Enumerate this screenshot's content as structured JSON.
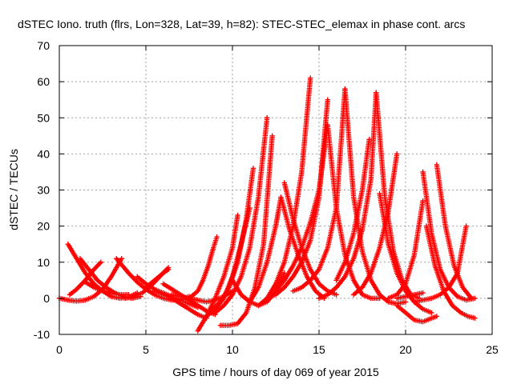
{
  "chart_data": {
    "type": "scatter",
    "title": "dSTEC Iono. truth (flrs, Lon=328, Lat=39, h=82): STEC-STEC_elemax in phase cont. arcs",
    "xlabel": "GPS time / hours of day 069 of year 2015",
    "ylabel": "dSTEC  / TECUs",
    "xlim": [
      0,
      25
    ],
    "ylim": [
      -10,
      70
    ],
    "xticks": [
      0,
      5,
      10,
      15,
      20,
      25
    ],
    "yticks": [
      -10,
      0,
      10,
      20,
      30,
      40,
      50,
      60,
      70
    ],
    "grid": true,
    "marker": "+",
    "color": "#ff0000",
    "series": [
      {
        "x": [
          0.0,
          0.5,
          1.0,
          1.5,
          2.0,
          2.5,
          3.0,
          3.3,
          3.6
        ],
        "y": [
          0,
          -0.5,
          -0.8,
          -0.5,
          0.5,
          2.5,
          6,
          8.5,
          11
        ]
      },
      {
        "x": [
          0.5,
          1.0,
          1.5,
          2.0,
          2.5,
          3.0,
          3.5,
          4.0,
          4.5
        ],
        "y": [
          15,
          11,
          7,
          4,
          2,
          0.5,
          0,
          0.3,
          1.5
        ]
      },
      {
        "x": [
          1.2,
          1.7,
          2.2,
          2.7,
          3.2,
          3.7,
          4.2,
          4.7
        ],
        "y": [
          11,
          8,
          5,
          3,
          1.5,
          0.5,
          0,
          0.5
        ]
      },
      {
        "x": [
          1.5,
          2.0,
          2.5,
          3.0,
          3.5,
          4.0
        ],
        "y": [
          4.5,
          3,
          2,
          1.5,
          1,
          1
        ]
      },
      {
        "x": [
          0.6,
          1.0,
          1.5,
          2.0,
          2.4
        ],
        "y": [
          1,
          2.5,
          5,
          8,
          10
        ]
      },
      {
        "x": [
          3.3,
          4.0,
          4.5,
          5.0,
          5.5,
          6.0,
          6.5,
          7.0,
          7.5
        ],
        "y": [
          11,
          7,
          4.5,
          2.5,
          1,
          0,
          -0.5,
          -0.3,
          0.5
        ]
      },
      {
        "x": [
          3.8,
          4.3,
          4.8,
          5.3,
          5.8,
          6.3
        ],
        "y": [
          0,
          0.5,
          1.5,
          3.5,
          6,
          8.5
        ]
      },
      {
        "x": [
          4.5,
          5.0,
          5.5,
          6.0,
          6.5,
          7.0,
          7.5,
          8.0
        ],
        "y": [
          6,
          4,
          2.5,
          1.5,
          0.5,
          -0.5,
          -1.5,
          -2.5
        ]
      },
      {
        "x": [
          5.0,
          5.5,
          6.0,
          6.3
        ],
        "y": [
          3,
          5,
          7,
          8
        ]
      },
      {
        "x": [
          5.5,
          6.0,
          6.5,
          7.0,
          7.5,
          8.0,
          8.5
        ],
        "y": [
          2,
          1,
          0,
          -1.5,
          -3,
          -4.5,
          -5.5
        ]
      },
      {
        "x": [
          6.0,
          6.5,
          7.0,
          7.5,
          8.0,
          8.5,
          9.0
        ],
        "y": [
          4,
          2.5,
          1,
          -0.5,
          -2,
          -3.5,
          -4.5
        ]
      },
      {
        "x": [
          6.5,
          7.0,
          7.5,
          8.0,
          8.5,
          9.0,
          9.5,
          10.0
        ],
        "y": [
          1,
          0.5,
          0,
          -0.5,
          -1,
          -0.5,
          0.5,
          2
        ]
      },
      {
        "x": [
          7.5,
          8.0,
          8.3,
          8.6,
          8.9,
          9.1
        ],
        "y": [
          0,
          2,
          5,
          9,
          14,
          17
        ]
      },
      {
        "x": [
          8.0,
          8.5,
          9.0,
          9.5,
          10.0,
          10.3
        ],
        "y": [
          -9,
          -5,
          0,
          6,
          14,
          23
        ]
      },
      {
        "x": [
          8.5,
          9.0,
          9.5,
          10.0,
          10.5,
          11.0
        ],
        "y": [
          -5,
          -3,
          0,
          6,
          15,
          25
        ]
      },
      {
        "x": [
          8.8,
          9.3,
          9.8,
          10.3,
          10.8,
          11.2
        ],
        "y": [
          -3,
          -1,
          3,
          10,
          22,
          36
        ]
      },
      {
        "x": [
          9.0,
          9.5,
          10.0,
          10.5,
          11.0,
          11.5,
          12.0
        ],
        "y": [
          -4,
          -2,
          1,
          6,
          14,
          28,
          50
        ]
      },
      {
        "x": [
          9.3,
          9.8,
          10.3,
          10.8,
          11.3,
          11.8,
          12.3
        ],
        "y": [
          -7.5,
          -7.5,
          -7,
          -4,
          3,
          15,
          45
        ]
      },
      {
        "x": [
          10.0,
          10.5,
          11.0,
          11.5,
          12.0,
          12.5,
          13.0
        ],
        "y": [
          5,
          1,
          -1,
          -2,
          -1,
          2,
          7
        ]
      },
      {
        "x": [
          11.0,
          11.5,
          12.0,
          12.5,
          12.8
        ],
        "y": [
          -1,
          3,
          10,
          20,
          28
        ]
      },
      {
        "x": [
          11.5,
          12.0,
          12.5,
          13.0,
          13.5,
          14.0,
          14.5
        ],
        "y": [
          -2,
          0,
          4,
          10,
          20,
          35,
          61
        ]
      },
      {
        "x": [
          12.0,
          12.5,
          13.0,
          13.5,
          14.0,
          14.5,
          15.0,
          15.5
        ],
        "y": [
          0,
          1,
          3,
          6,
          10,
          16,
          28,
          55
        ]
      },
      {
        "x": [
          12.5,
          13.0,
          13.5,
          14.0,
          14.5,
          15.0,
          15.5
        ],
        "y": [
          2,
          5,
          9,
          14,
          21,
          30,
          48
        ]
      },
      {
        "x": [
          13.0,
          13.5,
          14.0,
          14.5,
          15.0,
          15.5,
          16.0
        ],
        "y": [
          32,
          22,
          14,
          8,
          4,
          2,
          1
        ]
      },
      {
        "x": [
          12.8,
          13.3,
          13.8,
          14.3,
          14.8,
          15.3
        ],
        "y": [
          28,
          19,
          12,
          6,
          2,
          0
        ]
      },
      {
        "x": [
          13.5,
          14.0,
          14.5,
          15.0,
          15.5,
          16.0,
          16.5
        ],
        "y": [
          2,
          3,
          5,
          8,
          14,
          25,
          58
        ]
      },
      {
        "x": [
          15.5,
          16.0,
          16.5,
          17.0,
          17.5,
          18.0,
          18.5
        ],
        "y": [
          48,
          25,
          12,
          5,
          1,
          0,
          0
        ]
      },
      {
        "x": [
          15.0,
          15.5,
          16.0,
          16.5,
          17.0,
          17.5,
          18.0,
          18.3
        ],
        "y": [
          0,
          1,
          3,
          6,
          11,
          19,
          33,
          57
        ]
      },
      {
        "x": [
          16.5,
          17.0,
          17.5,
          18.0,
          18.5,
          19.0,
          19.5,
          20.0
        ],
        "y": [
          58,
          28,
          13,
          5,
          1,
          -1,
          -1.5,
          -1
        ]
      },
      {
        "x": [
          16.0,
          16.5,
          17.0,
          17.5,
          17.9
        ],
        "y": [
          5,
          10,
          18,
          30,
          44
        ]
      },
      {
        "x": [
          18.3,
          18.8,
          19.3,
          19.8,
          20.3,
          20.8
        ],
        "y": [
          57,
          28,
          13,
          5,
          1,
          0
        ]
      },
      {
        "x": [
          17.0,
          17.5,
          18.0,
          18.5,
          19.0,
          19.5
        ],
        "y": [
          1,
          3,
          7,
          14,
          24,
          40
        ]
      },
      {
        "x": [
          18.5,
          19.0,
          19.5,
          20.0,
          20.5,
          21.0,
          21.5
        ],
        "y": [
          29,
          15,
          7,
          2,
          -1,
          -3,
          -4
        ]
      },
      {
        "x": [
          19.0,
          19.5,
          20.0,
          20.5,
          21.0
        ],
        "y": [
          0,
          1,
          4,
          12,
          27
        ]
      },
      {
        "x": [
          19.5,
          20.0,
          20.5,
          21.0,
          21.5,
          21.8
        ],
        "y": [
          -2,
          -4,
          -6,
          -6.5,
          -5.5,
          -5
        ]
      },
      {
        "x": [
          21.0,
          21.5,
          22.0,
          22.5,
          23.0,
          23.5,
          24.0
        ],
        "y": [
          35,
          18,
          8,
          3,
          0.5,
          -0.5,
          0
        ]
      },
      {
        "x": [
          21.8,
          22.3,
          22.8,
          23.3,
          23.8
        ],
        "y": [
          37,
          20,
          9,
          3,
          0
        ]
      },
      {
        "x": [
          21.2,
          21.7,
          22.2,
          22.7,
          23.2,
          23.6,
          24.0
        ],
        "y": [
          20,
          9,
          2,
          -2,
          -4,
          -5,
          -5.5
        ]
      },
      {
        "x": [
          20.5,
          21.0,
          21.5,
          22.0,
          22.5,
          23.0,
          23.5
        ],
        "y": [
          -1,
          -0.5,
          0,
          1,
          3,
          7,
          20
        ]
      },
      {
        "x": [
          19.5,
          20.0,
          20.5,
          21.0
        ],
        "y": [
          0,
          0.5,
          1,
          1.5
        ]
      }
    ]
  }
}
